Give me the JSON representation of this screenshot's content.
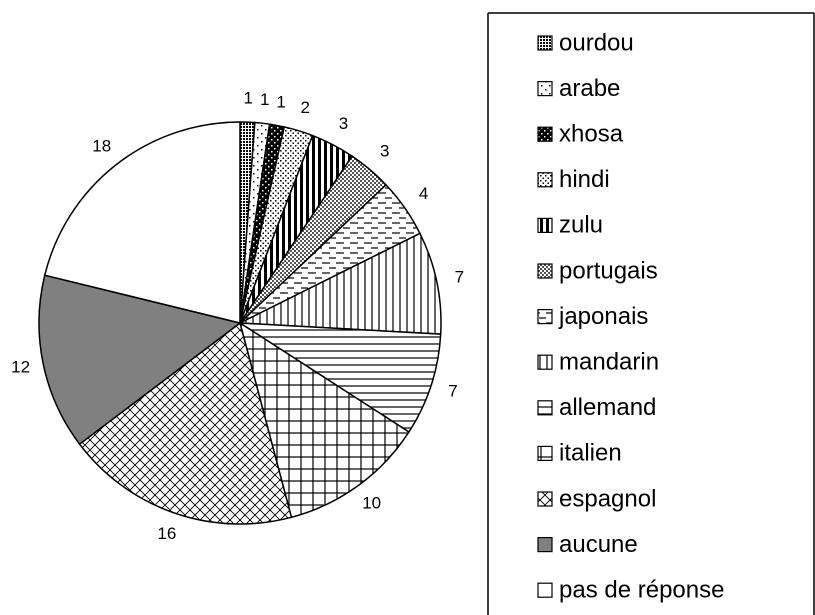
{
  "chart_data": {
    "type": "pie",
    "categories": [
      "ourdou",
      "arabe",
      "xhosa",
      "hindi",
      "zulu",
      "portugais",
      "japonais",
      "mandarin",
      "allemand",
      "italien",
      "espagnol",
      "aucune",
      "pas de réponse"
    ],
    "values": [
      1,
      1,
      1,
      2,
      3,
      3,
      4,
      7,
      7,
      10,
      16,
      12,
      18
    ]
  }
}
